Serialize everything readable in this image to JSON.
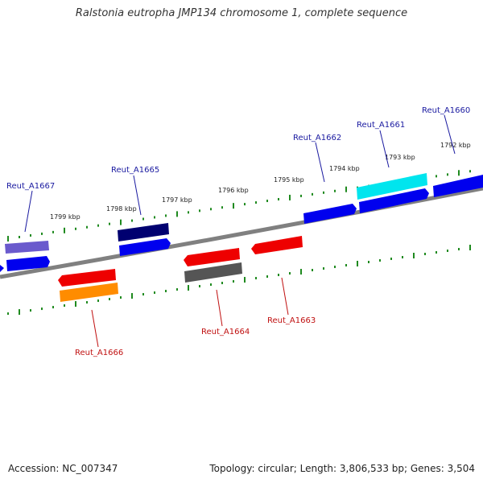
{
  "title": "Ralstonia eutropha JMP134 chromosome 1, complete sequence",
  "footer": {
    "accession": "Accession: NC_007347",
    "topology": "Topology: circular; Length: 3,806,533 bp; Genes: 3,504"
  },
  "colors": {
    "backbone": "#808080",
    "tick": "#1f8a1f",
    "label_forward": "#1a1aa0",
    "label_reverse": "#c01010",
    "blue": "#0000ee",
    "dark_blue": "#000070",
    "slate_blue": "#6a5acd",
    "cyan": "#00e5ee",
    "red": "#ee0000",
    "orange": "#ff8c00",
    "gray": "#555555"
  },
  "kbp_labels": [
    "1799 kbp",
    "1798 kbp",
    "1797 kbp",
    "1796 kbp",
    "1795 kbp",
    "1794 kbp",
    "1793 kbp",
    "1792 kbp"
  ],
  "gene_labels_forward": [
    "Reut_A1667",
    "Reut_A1665",
    "Reut_A1662",
    "Reut_A1661",
    "Reut_A1660"
  ],
  "gene_labels_reverse": [
    "Reut_A1666",
    "Reut_A1664",
    "Reut_A1663"
  ]
}
